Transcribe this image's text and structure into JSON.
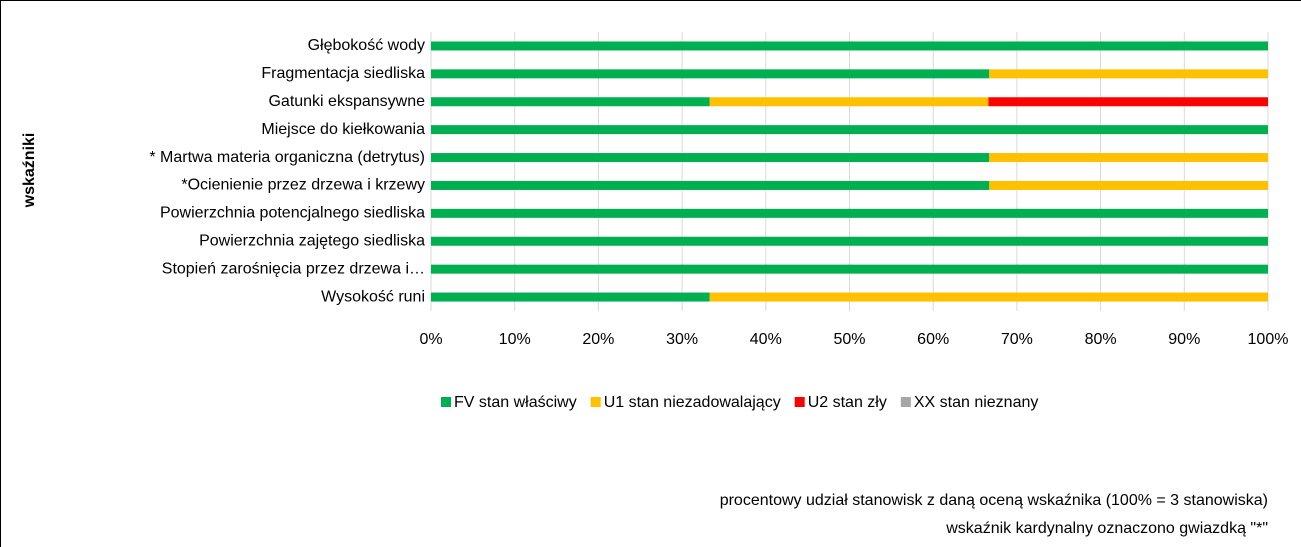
{
  "chart_data": {
    "type": "stacked-bar-horizontal",
    "categories": [
      "Głębokość wody",
      "Fragmentacja siedliska",
      "Gatunki ekspansywne",
      "Miejsce do kiełkowania",
      "* Martwa materia organiczna (detrytus)",
      "*Ocienienie przez drzewa i krzewy",
      "Powierzchnia potencjalnego siedliska",
      "Powierzchnia zajętego siedliska",
      "Stopień zarośnięcia przez drzewa i…",
      "Wysokość runi"
    ],
    "series": [
      {
        "name": "FV stan właściwy",
        "color": "#00b050",
        "values": [
          100,
          66.7,
          33.3,
          100,
          66.7,
          66.7,
          100,
          100,
          100,
          33.3
        ]
      },
      {
        "name": "U1 stan niezadowalający",
        "color": "#ffc000",
        "values": [
          0,
          33.3,
          33.3,
          0,
          33.3,
          33.3,
          0,
          0,
          0,
          66.7
        ]
      },
      {
        "name": "U2 stan zły",
        "color": "#ff0000",
        "values": [
          0,
          0,
          33.4,
          0,
          0,
          0,
          0,
          0,
          0,
          0
        ]
      },
      {
        "name": "XX stan nieznany",
        "color": "#a6a6a6",
        "values": [
          0,
          0,
          0,
          0,
          0,
          0,
          0,
          0,
          0,
          0
        ]
      }
    ],
    "y_label": "wskaźniki",
    "xlim": [
      0,
      100
    ],
    "xticks": [
      {
        "value": 0,
        "label": "0%"
      },
      {
        "value": 10,
        "label": "10%"
      },
      {
        "value": 20,
        "label": "20%"
      },
      {
        "value": 30,
        "label": "30%"
      },
      {
        "value": 40,
        "label": "40%"
      },
      {
        "value": 50,
        "label": "50%"
      },
      {
        "value": 60,
        "label": "60%"
      },
      {
        "value": 70,
        "label": "70%"
      },
      {
        "value": 80,
        "label": "80%"
      },
      {
        "value": 90,
        "label": "90%"
      },
      {
        "value": 100,
        "label": "100%"
      }
    ],
    "grid": true,
    "legend": "bottom",
    "annotations": [
      "procentowy udział stanowisk z daną oceną wskaźnika (100% = 3 stanowiska)",
      "wskaźnik kardynalny oznaczono gwiazdką \"*\""
    ]
  }
}
